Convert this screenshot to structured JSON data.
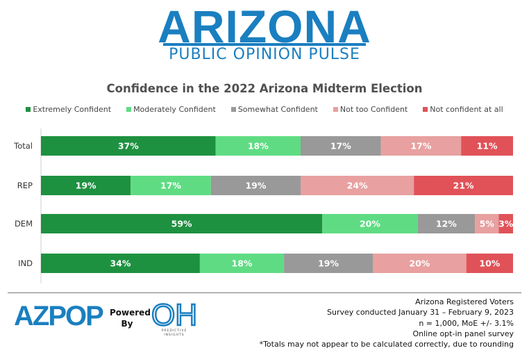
{
  "header": {
    "brand": "ARIZONA",
    "subtitle": "PUBLIC OPINION PULSE"
  },
  "chart_data": {
    "type": "bar",
    "orientation": "horizontal",
    "stacked": true,
    "title": "Confidence in the 2022 Arizona Midterm Election",
    "categories": [
      "Total",
      "REP",
      "DEM",
      "IND"
    ],
    "series": [
      {
        "name": "Extremely Confident",
        "color": "#1e9140",
        "values": [
          37,
          19,
          59,
          34
        ]
      },
      {
        "name": "Moderately Confident",
        "color": "#5fdc83",
        "values": [
          18,
          17,
          20,
          18
        ]
      },
      {
        "name": "Somewhat Confident",
        "color": "#999999",
        "values": [
          17,
          19,
          12,
          19
        ]
      },
      {
        "name": "Not too Confident",
        "color": "#e8a0a0",
        "values": [
          17,
          24,
          5,
          20
        ]
      },
      {
        "name": "Not confident at all",
        "color": "#e05258",
        "values": [
          11,
          21,
          3,
          10
        ]
      }
    ],
    "value_suffix": "%",
    "legend": "top",
    "grid": false
  },
  "footer": {
    "logo_left": "AZPOP",
    "powered_by": [
      "Powered",
      "By"
    ],
    "logo_right": "OH",
    "logo_right_tag": "PREDICTIVE INSIGHTS",
    "notes": [
      "Arizona Registered Voters",
      "Survey conducted January 31 – February 9, 2023",
      "n = 1,000, MoE +/- 3.1%",
      "Online opt-in panel survey",
      "*Totals may not appear to be calculated correctly, due to rounding"
    ]
  }
}
